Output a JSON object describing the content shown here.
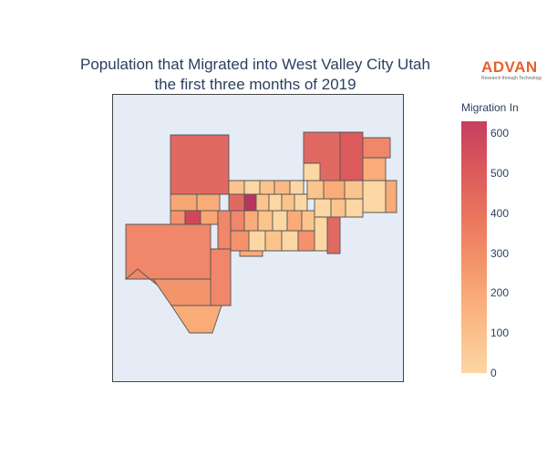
{
  "title": {
    "line1": "Population that Migrated into West Valley City Utah",
    "line2": "the first three months of 2019"
  },
  "logo": {
    "word": "ADVAN",
    "tagline": "Research through Technology"
  },
  "colorbar": {
    "title": "Migration In",
    "min": 0,
    "max": 630,
    "ticks": [
      0,
      100,
      200,
      300,
      400,
      500,
      600
    ],
    "colors": [
      "#fcd7a3",
      "#f9ab78",
      "#ef8060",
      "#dc5a5b",
      "#c63f5e"
    ]
  },
  "map_style": {
    "background": "#e5ecf6",
    "border": "#555555"
  }
}
